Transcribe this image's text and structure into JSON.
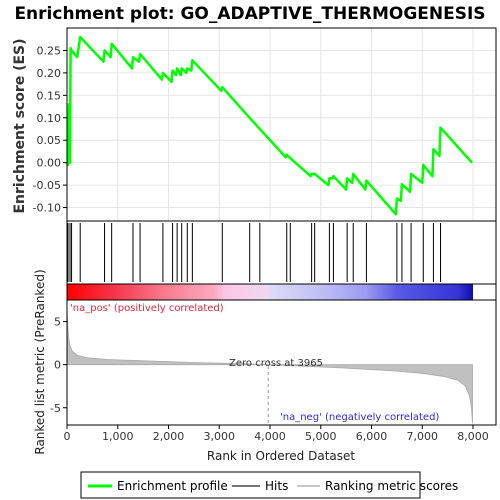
{
  "chart_data": [
    {
      "type": "line",
      "title": "Enrichment plot: GO_ADAPTIVE_THERMOGENESIS",
      "ylabel": "Enrichment score (ES)",
      "xlim": [
        0,
        8000
      ],
      "ylim": [
        -0.13,
        0.3
      ],
      "yticks": [
        "-0.10",
        "-0.05",
        "0.00",
        "0.05",
        "0.10",
        "0.15",
        "0.20",
        "0.25"
      ],
      "ytick_values": [
        -0.1,
        -0.05,
        0.0,
        0.05,
        0.1,
        0.15,
        0.2,
        0.25
      ],
      "grid": true,
      "line_color": "#00ff00",
      "series": [
        {
          "name": "Enrichment profile",
          "x": [
            0,
            20,
            40,
            60,
            70,
            90,
            200,
            260,
            720,
            740,
            860,
            880,
            1280,
            1300,
            1420,
            1440,
            1870,
            1890,
            2060,
            2080,
            2150,
            2170,
            2240,
            2260,
            2350,
            2370,
            2450,
            2470,
            3040,
            3060,
            3600,
            4310,
            4330,
            4400,
            4800,
            4820,
            4880,
            5150,
            5170,
            5230,
            5250,
            5500,
            5520,
            5620,
            5640,
            5880,
            5900,
            6480,
            6500,
            6580,
            6600,
            6760,
            6780,
            7000,
            7020,
            7200,
            7220,
            7340,
            7360,
            7980
          ],
          "y": [
            0.0,
            -0.005,
            0.13,
            0.0,
            0.255,
            0.25,
            0.235,
            0.28,
            0.225,
            0.25,
            0.235,
            0.265,
            0.21,
            0.235,
            0.225,
            0.242,
            0.185,
            0.2,
            0.18,
            0.205,
            0.195,
            0.21,
            0.195,
            0.21,
            0.2,
            0.21,
            0.205,
            0.228,
            0.16,
            0.168,
            0.1,
            0.012,
            0.018,
            0.01,
            -0.03,
            -0.025,
            -0.025,
            -0.05,
            -0.035,
            -0.035,
            -0.03,
            -0.06,
            -0.035,
            -0.045,
            -0.025,
            -0.06,
            -0.04,
            -0.115,
            -0.08,
            -0.085,
            -0.048,
            -0.065,
            -0.025,
            -0.045,
            -0.005,
            -0.03,
            0.03,
            0.015,
            0.078,
            0.0
          ]
        }
      ]
    },
    {
      "type": "scatter",
      "title": "",
      "name": "Hits",
      "x": [
        20,
        60,
        90,
        260,
        740,
        880,
        1300,
        1440,
        1890,
        2080,
        2170,
        2260,
        2370,
        2470,
        3060,
        3600,
        3800,
        4330,
        4400,
        4820,
        4880,
        5170,
        5250,
        5520,
        5640,
        5900,
        6500,
        6600,
        6780,
        7020,
        7220,
        7360
      ],
      "xlim": [
        0,
        8000
      ]
    },
    {
      "type": "heatmap",
      "title": "",
      "description_labels": [],
      "stops": [
        {
          "x": 0,
          "color": "#ff0000"
        },
        {
          "x": 1000,
          "color": "#f53a50"
        },
        {
          "x": 1900,
          "color": "#f87a8c"
        },
        {
          "x": 2900,
          "color": "#fbaac0"
        },
        {
          "x": 3100,
          "color": "#fcc6e6"
        },
        {
          "x": 3950,
          "color": "#f0d8f0"
        },
        {
          "x": 4000,
          "color": "#dcdcf8"
        },
        {
          "x": 5000,
          "color": "#bfbff5"
        },
        {
          "x": 5900,
          "color": "#9b9bf0"
        },
        {
          "x": 6500,
          "color": "#5a5ae6"
        },
        {
          "x": 7700,
          "color": "#3535d8"
        },
        {
          "x": 7980,
          "color": "#1010b0"
        }
      ],
      "xlim": [
        0,
        8000
      ]
    },
    {
      "type": "area",
      "title": "",
      "name": "Ranking metric scores",
      "ylabel": "Ranked list metric (PreRanked)",
      "xlabel": "Rank in Ordered Dataset",
      "xlim": [
        0,
        8000
      ],
      "ylim": [
        -7,
        7.5
      ],
      "yticks": [
        "-5",
        "0",
        "5"
      ],
      "ytick_values": [
        -5,
        0,
        5
      ],
      "xticks": [
        "0",
        "1,000",
        "2,000",
        "3,000",
        "4,000",
        "5,000",
        "6,000",
        "7,000",
        "8,000"
      ],
      "xtick_values": [
        0,
        1000,
        2000,
        3000,
        4000,
        5000,
        6000,
        7000,
        8000
      ],
      "x": [
        0,
        5,
        15,
        30,
        60,
        100,
        200,
        400,
        800,
        1500,
        2500,
        3500,
        3965,
        4500,
        5500,
        6500,
        7000,
        7400,
        7700,
        7850,
        7930,
        7970,
        7990
      ],
      "values": [
        6.5,
        5.8,
        4.5,
        3.2,
        2.2,
        1.6,
        1.1,
        0.8,
        0.6,
        0.45,
        0.25,
        0.1,
        0.0,
        -0.15,
        -0.4,
        -0.75,
        -1.0,
        -1.35,
        -1.8,
        -2.5,
        -3.6,
        -5.0,
        -6.8
      ],
      "zero_cross": 3965,
      "annotations": {
        "pos": "'na_pos' (positively correlated)",
        "neg": "'na_neg' (negatively correlated)",
        "zero": "Zero cross at 3965"
      }
    }
  ],
  "legend": {
    "placement": "bottom",
    "items": [
      {
        "label": "Enrichment profile",
        "color": "#00ff00"
      },
      {
        "label": "Hits",
        "color": "#777777"
      },
      {
        "label": "Ranking metric scores",
        "color": "#c8c8c8"
      }
    ]
  }
}
